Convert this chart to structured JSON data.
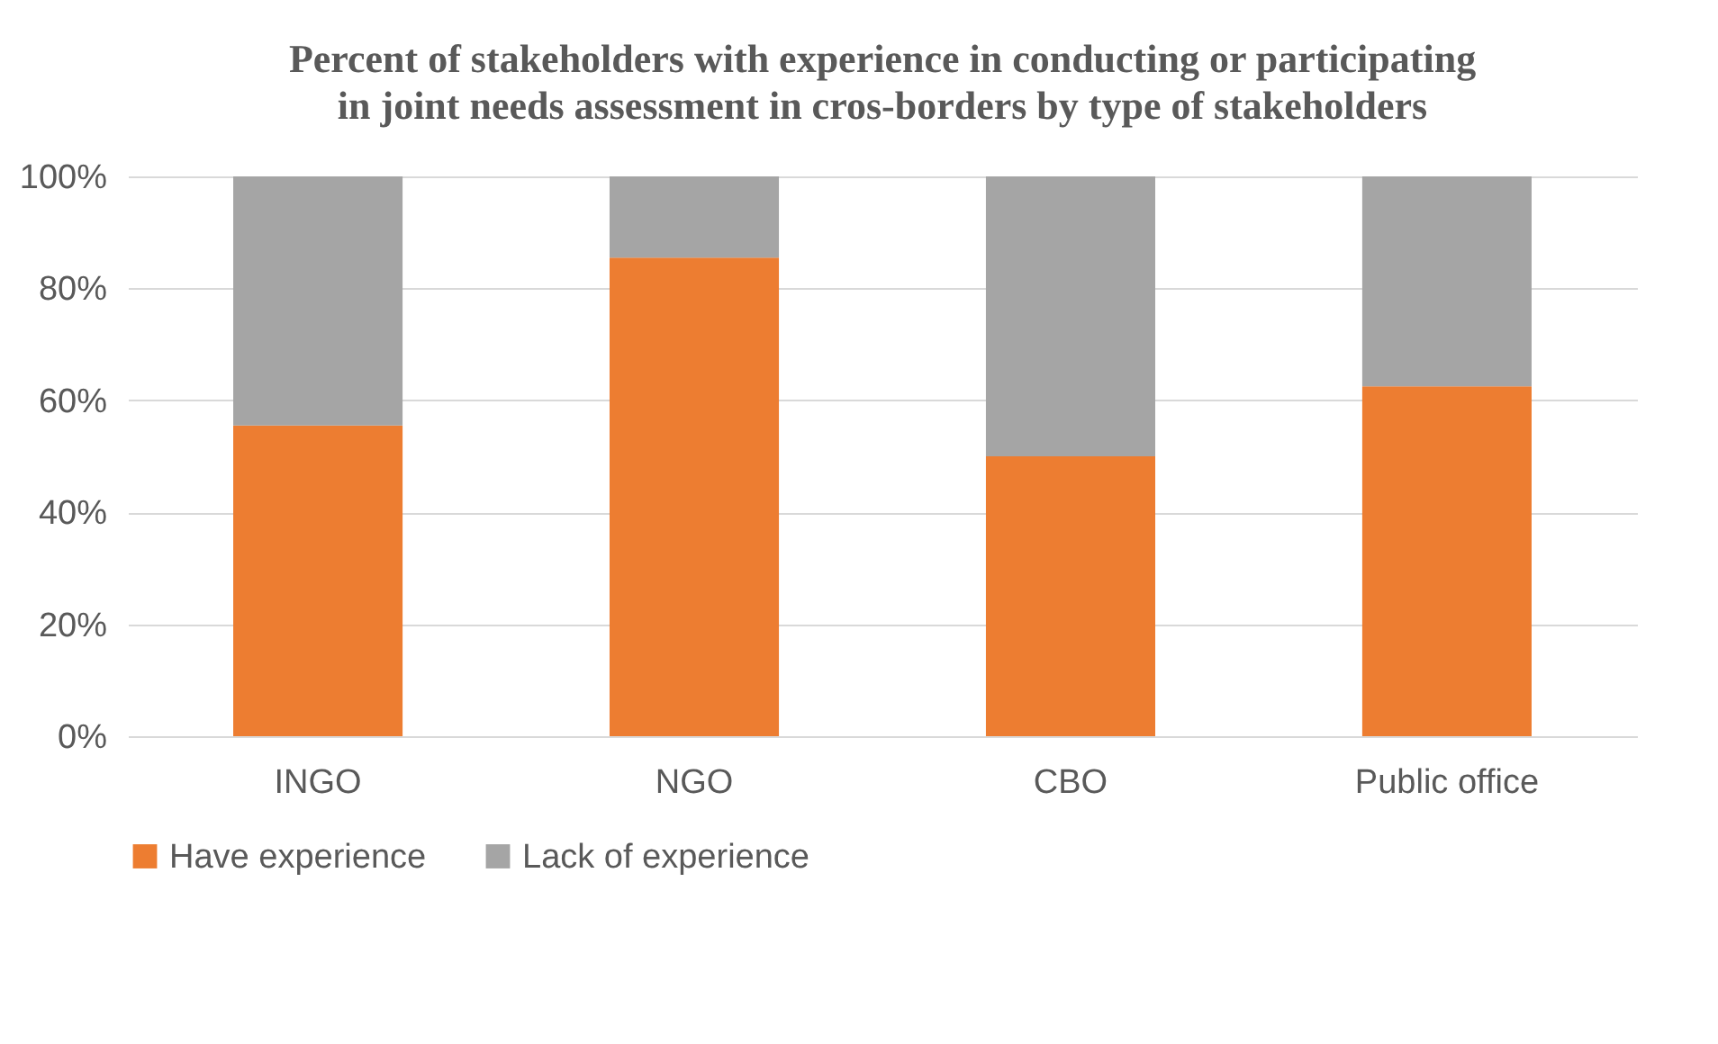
{
  "chart_data": {
    "type": "bar",
    "title": "Percent of stakeholders with experience in conducting or participating in joint needs assessment in cros-borders by type of stakeholders",
    "categories": [
      "INGO",
      "NGO",
      "CBO",
      "Public office"
    ],
    "stacked": true,
    "series": [
      {
        "name": "Have experience",
        "color": "#ed7d31",
        "values": [
          55.5,
          85.5,
          50,
          62.5
        ]
      },
      {
        "name": "Lack of experience",
        "color": "#a5a5a5",
        "values": [
          44.5,
          14.5,
          50,
          37.5
        ]
      }
    ],
    "ylim": [
      0,
      100
    ],
    "yticks": [
      {
        "value": 0,
        "label": "0%"
      },
      {
        "value": 20,
        "label": "20%"
      },
      {
        "value": 40,
        "label": "40%"
      },
      {
        "value": 60,
        "label": "60%"
      },
      {
        "value": 80,
        "label": "80%"
      },
      {
        "value": 100,
        "label": "100%"
      }
    ],
    "grid": "y",
    "legend": "bottom"
  }
}
